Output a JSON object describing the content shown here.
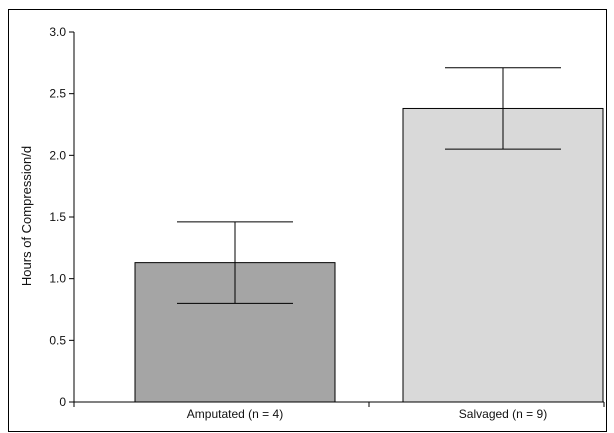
{
  "chart_data": {
    "type": "bar",
    "title": "",
    "xlabel": "",
    "ylabel": "Hours of Compression/d",
    "categories": [
      "Amputated (n = 4)",
      "Salvaged (n = 9)"
    ],
    "values": [
      1.13,
      2.38
    ],
    "error_low": [
      0.8,
      2.05
    ],
    "error_high": [
      1.46,
      2.71
    ],
    "ylim": [
      0,
      3.0
    ],
    "yticks": [
      "0",
      "0.5",
      "1.0",
      "1.5",
      "2.0",
      "2.5",
      "3.0"
    ],
    "bar_colors": [
      "#a5a5a5",
      "#d9d9d9"
    ],
    "grid": false,
    "legend": "none"
  }
}
